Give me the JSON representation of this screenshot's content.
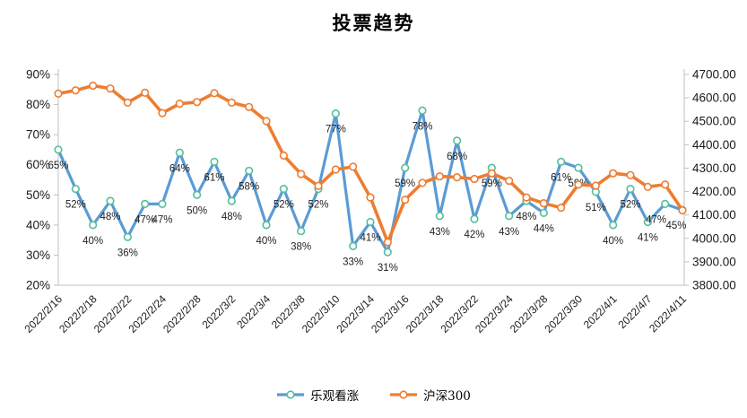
{
  "chart_data": {
    "type": "line",
    "title": "投票趋势",
    "n_points": 37,
    "x_tick_every": 2,
    "x_tick_labels": [
      "2022/2/16",
      "2022/2/18",
      "2022/2/22",
      "2022/2/24",
      "2022/2/28",
      "2022/3/2",
      "2022/3/4",
      "2022/3/8",
      "2022/3/10",
      "2022/3/14",
      "2022/3/16",
      "2022/3/18",
      "2022/3/22",
      "2022/3/24",
      "2022/3/28",
      "2022/3/30",
      "2022/4/1",
      "2022/4/7",
      "2022/4/11"
    ],
    "left_axis": {
      "min": 20,
      "max": 90,
      "step": 10,
      "tick_labels": [
        "20%",
        "30%",
        "40%",
        "50%",
        "60%",
        "70%",
        "80%",
        "90%"
      ]
    },
    "right_axis": {
      "min": 3800,
      "max": 4700,
      "step": 100,
      "tick_labels": [
        "3800.00",
        "3900.00",
        "4000.00",
        "4100.00",
        "4200.00",
        "4300.00",
        "4400.00",
        "4500.00",
        "4600.00",
        "4700.00"
      ]
    },
    "grid": false,
    "legend_position": "bottom",
    "series": [
      {
        "name": "乐观看涨",
        "axis": "left",
        "unit": "%",
        "color": "#5B9BD5",
        "marker_stroke": "#55BE9C",
        "marker_fill": "#ffffff",
        "data_labels": true,
        "values": [
          65,
          52,
          40,
          48,
          36,
          47,
          47,
          64,
          50,
          61,
          48,
          58,
          40,
          52,
          38,
          52,
          77,
          33,
          41,
          31,
          59,
          78,
          43,
          68,
          42,
          59,
          43,
          48,
          44,
          61,
          59,
          51,
          40,
          52,
          41,
          47,
          45
        ],
        "label_texts": [
          "65%",
          "52%",
          "40%",
          "48%",
          "36%",
          "47%",
          "47%",
          "64%",
          "50%",
          "61%",
          "48%",
          "58%",
          "40%",
          "52%",
          "38%",
          "52%",
          "77%",
          "33%",
          "41%",
          "31%",
          "59%",
          "78%",
          "43%",
          "68%",
          "42%",
          "59%",
          "43%",
          "48%",
          "44%",
          "61%",
          "59%",
          "51%",
          "40%",
          "52%",
          "41%",
          "47%",
          "45%"
        ]
      },
      {
        "name": "沪深300",
        "axis": "right",
        "color": "#ED7D31",
        "marker_stroke": "#ED7D31",
        "marker_fill": "#ffffff",
        "data_labels": false,
        "values": [
          4618,
          4632,
          4652,
          4640,
          4580,
          4622,
          4535,
          4575,
          4582,
          4620,
          4580,
          4561,
          4501,
          4354,
          4275,
          4224,
          4294,
          4306,
          4175,
          3984,
          4165,
          4237,
          4265,
          4261,
          4254,
          4278,
          4246,
          4175,
          4150,
          4131,
          4230,
          4225,
          4278,
          4270,
          4220,
          4230,
          4120
        ]
      }
    ],
    "colors": {
      "axis_line": "#BFBFBF",
      "tick_text": "#1a1a1a",
      "data_label_text": "#1f1f1f",
      "background": "#ffffff"
    }
  }
}
